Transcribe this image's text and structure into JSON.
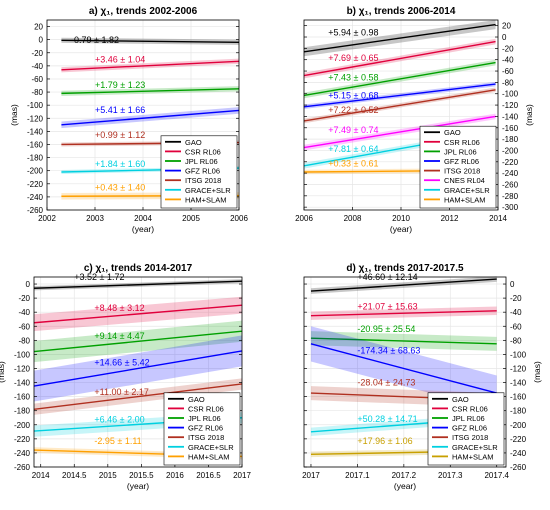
{
  "layout": {
    "w": 550,
    "h": 505
  },
  "chart_data": [
    {
      "type": "line",
      "title": "a) χ₁, trends 2002-2006",
      "xlabel": "(year)",
      "ylabel": "(mas)",
      "xlim": [
        2002,
        2006
      ],
      "ylim": [
        -260,
        30
      ],
      "xticks": [
        2002,
        2003,
        2004,
        2005,
        2006
      ],
      "yticks": [
        -260,
        -240,
        -220,
        -200,
        -180,
        -160,
        -140,
        -120,
        -100,
        -80,
        -60,
        -40,
        -20,
        0,
        20
      ],
      "yaxis_side": "left",
      "legend_position": "lower-right",
      "series": [
        {
          "name": "GAO",
          "color": "#000000",
          "x": [
            2002.3,
            2006
          ],
          "y": [
            -1,
            -4
          ],
          "unc": 4,
          "label": "-0.79 ± 1.82",
          "label_at": [
            2002.5,
            -5
          ]
        },
        {
          "name": "CSR RL06",
          "color": "#e0003c",
          "x": [
            2002.3,
            2006
          ],
          "y": [
            -46,
            -33
          ],
          "unc": 4,
          "label": "+3.46 ± 1.04",
          "label_at": [
            2003,
            -35
          ]
        },
        {
          "name": "JPL RL06",
          "color": "#00a000",
          "x": [
            2002.3,
            2006
          ],
          "y": [
            -82,
            -75
          ],
          "unc": 4,
          "label": "+1.79 ± 1.23",
          "label_at": [
            2003,
            -74
          ]
        },
        {
          "name": "GFZ RL06",
          "color": "#0000ff",
          "x": [
            2002.3,
            2006
          ],
          "y": [
            -130,
            -108
          ],
          "unc": 5,
          "label": "+5.41 ± 1.66",
          "label_at": [
            2003,
            -112
          ]
        },
        {
          "name": "ITSG 2018",
          "color": "#b03020",
          "x": [
            2002.3,
            2006
          ],
          "y": [
            -160,
            -157
          ],
          "unc": 3,
          "label": "+0.99 ± 1.12",
          "label_at": [
            2003,
            -150
          ]
        },
        {
          "name": "GRACE+SLR",
          "color": "#00d0e0",
          "x": [
            2002.3,
            2006
          ],
          "y": [
            -202,
            -196
          ],
          "unc": 3,
          "label": "+1.84 ± 1.60",
          "label_at": [
            2003,
            -194
          ]
        },
        {
          "name": "HAM+SLAM",
          "color": "#ffa000",
          "x": [
            2002.3,
            2006
          ],
          "y": [
            -239,
            -238
          ],
          "unc": 5,
          "label": "+0.43 ± 1.40",
          "label_at": [
            2003,
            -230
          ]
        }
      ]
    },
    {
      "type": "line",
      "title": "b) χ₁, trends 2006-2014",
      "xlabel": "(year)",
      "ylabel": "(mas)",
      "xlim": [
        2006,
        2014
      ],
      "ylim": [
        -305,
        30
      ],
      "xticks": [
        2006,
        2008,
        2010,
        2012,
        2014
      ],
      "yticks": [
        -300,
        -280,
        -260,
        -240,
        -220,
        -200,
        -180,
        -160,
        -140,
        -120,
        -100,
        -80,
        -60,
        -40,
        -20,
        0,
        20
      ],
      "yaxis_side": "right",
      "legend_position": "lower-right",
      "series": [
        {
          "name": "GAO",
          "color": "#000000",
          "x": [
            2006,
            2013.9
          ],
          "y": [
            -26,
            22
          ],
          "unc": 8,
          "label": "+5.94 ± 0.98",
          "label_at": [
            2007,
            3
          ]
        },
        {
          "name": "CSR RL06",
          "color": "#e0003c",
          "x": [
            2006,
            2013.9
          ],
          "y": [
            -68,
            -8
          ],
          "unc": 5,
          "label": "+7.69 ± 0.65",
          "label_at": [
            2007,
            -42
          ]
        },
        {
          "name": "JPL RL06",
          "color": "#00a000",
          "x": [
            2006,
            2013.9
          ],
          "y": [
            -103,
            -45
          ],
          "unc": 5,
          "label": "+7.43 ± 0.58",
          "label_at": [
            2007,
            -77
          ]
        },
        {
          "name": "GFZ RL06",
          "color": "#0000ff",
          "x": [
            2006,
            2013.9
          ],
          "y": [
            -123,
            -83
          ],
          "unc": 4,
          "label": "+5.15 ± 0.68",
          "label_at": [
            2007,
            -108
          ]
        },
        {
          "name": "ITSG 2018",
          "color": "#b03020",
          "x": [
            2006,
            2013.9
          ],
          "y": [
            -148,
            -93
          ],
          "unc": 4,
          "label": "+7.22 ± 0.52",
          "label_at": [
            2007,
            -134
          ]
        },
        {
          "name": "CNES RL04",
          "color": "#ff00ff",
          "x": [
            2006,
            2013.9
          ],
          "y": [
            -195,
            -140
          ],
          "unc": 5,
          "label": "+7.49 ± 0.74",
          "label_at": [
            2007,
            -169
          ]
        },
        {
          "name": "GRACE+SLR",
          "color": "#00d0e0",
          "x": [
            2006,
            2013.9
          ],
          "y": [
            -227,
            -167
          ],
          "unc": 5,
          "label": "+7.81 ± 0.64",
          "label_at": [
            2007,
            -203
          ]
        },
        {
          "name": "HAM+SLAM",
          "color": "#ffa000",
          "x": [
            2006,
            2013.9
          ],
          "y": [
            -238,
            -235
          ],
          "unc": 4,
          "label": "+0.33 ± 0.61",
          "label_at": [
            2007,
            -228
          ]
        }
      ]
    },
    {
      "type": "line",
      "title": "c) χ₁, trends 2014-2017",
      "xlabel": "(year)",
      "ylabel": "(mas)",
      "xlim": [
        2013.9,
        2017
      ],
      "ylim": [
        -260,
        10
      ],
      "xticks": [
        2014,
        2014.5,
        2015,
        2015.5,
        2016,
        2016.5,
        2017
      ],
      "yticks": [
        -260,
        -240,
        -220,
        -200,
        -180,
        -160,
        -140,
        -120,
        -100,
        -80,
        -60,
        -40,
        -20,
        0
      ],
      "yaxis_side": "left",
      "legend_position": "lower-right",
      "series": [
        {
          "name": "GAO",
          "color": "#000000",
          "x": [
            2013.9,
            2017
          ],
          "y": [
            -6,
            4
          ],
          "unc": 3,
          "label": "+3.52 ± 1.72",
          "label_at": [
            2014.5,
            6
          ]
        },
        {
          "name": "CSR RL06",
          "color": "#e0003c",
          "x": [
            2013.9,
            2017
          ],
          "y": [
            -55,
            -30
          ],
          "unc": 12,
          "label": "+8.48 ± 3.12",
          "label_at": [
            2014.8,
            -38
          ]
        },
        {
          "name": "JPL RL06",
          "color": "#00a000",
          "x": [
            2013.9,
            2017
          ],
          "y": [
            -96,
            -67
          ],
          "unc": 15,
          "label": "+9.14 ± 4.47",
          "label_at": [
            2014.8,
            -78
          ]
        },
        {
          "name": "GFZ RL06",
          "color": "#0000ff",
          "x": [
            2013.9,
            2017
          ],
          "y": [
            -145,
            -95
          ],
          "unc": 22,
          "label": "+14.66 ± 5.42",
          "label_at": [
            2014.8,
            -116
          ]
        },
        {
          "name": "ITSG 2018",
          "color": "#b03020",
          "x": [
            2013.9,
            2017
          ],
          "y": [
            -178,
            -142
          ],
          "unc": 8,
          "label": "+11.00 ± 2.17",
          "label_at": [
            2014.8,
            -158
          ]
        },
        {
          "name": "GRACE+SLR",
          "color": "#00d0e0",
          "x": [
            2013.9,
            2017
          ],
          "y": [
            -209,
            -190
          ],
          "unc": 8,
          "label": "+6.46 ± 2.00",
          "label_at": [
            2014.8,
            -197
          ]
        },
        {
          "name": "HAM+SLAM",
          "color": "#ffa000",
          "x": [
            2013.9,
            2017
          ],
          "y": [
            -236,
            -245
          ],
          "unc": 4,
          "label": "-2.95 ± 1.11",
          "label_at": [
            2014.8,
            -227
          ]
        }
      ]
    },
    {
      "type": "line",
      "title": "d) χ₁, trends 2017-2017.5",
      "xlabel": "(year)",
      "ylabel": "(mas)",
      "xlim": [
        2016.985,
        2017.42
      ],
      "ylim": [
        -260,
        10
      ],
      "xticks": [
        2017,
        2017.1,
        2017.2,
        2017.3,
        2017.4
      ],
      "yticks": [
        -260,
        -240,
        -220,
        -200,
        -180,
        -160,
        -140,
        -120,
        -100,
        -80,
        -60,
        -40,
        -20,
        0
      ],
      "yaxis_side": "right",
      "legend_position": "lower-right",
      "series": [
        {
          "name": "GAO",
          "color": "#000000",
          "x": [
            2017,
            2017.4
          ],
          "y": [
            -10,
            7
          ],
          "unc": 4,
          "label": "+46.60 ± 12.14",
          "label_at": [
            2017.1,
            6
          ]
        },
        {
          "name": "CSR RL06",
          "color": "#e0003c",
          "x": [
            2017,
            2017.4
          ],
          "y": [
            -45,
            -38
          ],
          "unc": 6,
          "label": "+21.07 ± 15.63",
          "label_at": [
            2017.1,
            -36
          ]
        },
        {
          "name": "JPL RL06",
          "color": "#00a000",
          "x": [
            2017,
            2017.4
          ],
          "y": [
            -77,
            -85
          ],
          "unc": 10,
          "label": "-20.95 ± 25.54",
          "label_at": [
            2017.1,
            -68
          ]
        },
        {
          "name": "GFZ RL06",
          "color": "#0000ff",
          "x": [
            2017,
            2017.4
          ],
          "y": [
            -85,
            -155
          ],
          "unc": 25,
          "label": "-174.34 ± 68.63",
          "label_at": [
            2017.1,
            -99
          ]
        },
        {
          "name": "ITSG 2018",
          "color": "#b03020",
          "x": [
            2017,
            2017.4
          ],
          "y": [
            -155,
            -165
          ],
          "unc": 10,
          "label": "-28.04 ± 24.73",
          "label_at": [
            2017.1,
            -144
          ]
        },
        {
          "name": "GRACE+SLR",
          "color": "#00d0e0",
          "x": [
            2017,
            2017.4
          ],
          "y": [
            -210,
            -190
          ],
          "unc": 6,
          "label": "+50.28 ± 14.71",
          "label_at": [
            2017.1,
            -196
          ]
        },
        {
          "name": "HAM+SLAM",
          "color": "#c8a000",
          "x": [
            2017,
            2017.4
          ],
          "y": [
            -242,
            -237
          ],
          "unc": 4,
          "label": "+17.96 ± 1.06",
          "label_at": [
            2017.1,
            -227
          ]
        }
      ]
    }
  ]
}
